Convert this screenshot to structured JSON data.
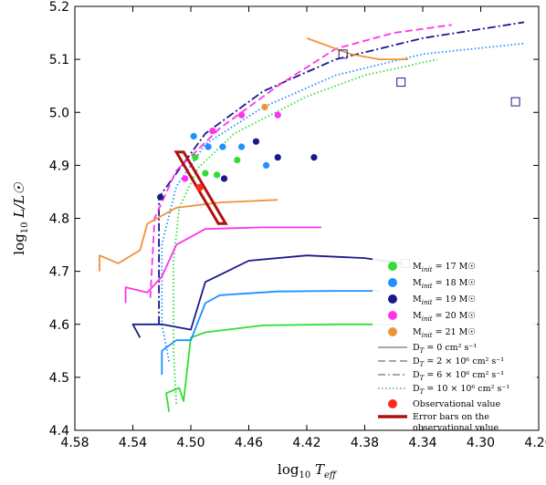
{
  "chart_data": {
    "type": "line",
    "xlabel": "log10 Teff",
    "ylabel": "log10 L/L☉",
    "xlim": [
      4.58,
      4.26
    ],
    "ylim": [
      4.4,
      5.2
    ],
    "x_ticks": [
      "4.58",
      "4.54",
      "4.50",
      "4.46",
      "4.42",
      "4.38",
      "4.34",
      "4.30",
      "4.26"
    ],
    "y_ticks": [
      "4.4",
      "4.5",
      "4.6",
      "4.7",
      "4.8",
      "4.9",
      "5.0",
      "5.1",
      "5.2"
    ],
    "grid": false,
    "legend_position": "bottom-right",
    "series": [
      {
        "name": "Minit = 17 M☉",
        "color": "#33dd33",
        "tracks": [
          {
            "dt": "0",
            "points": [
              [
                4.515,
                4.435
              ],
              [
                4.517,
                4.47
              ],
              [
                4.508,
                4.48
              ],
              [
                4.505,
                4.455
              ],
              [
                4.5,
                4.575
              ],
              [
                4.49,
                4.585
              ],
              [
                4.45,
                4.598
              ],
              [
                4.4,
                4.6
              ],
              [
                4.36,
                4.6
              ]
            ]
          },
          {
            "dt": "10",
            "points": [
              [
                4.51,
                4.45
              ],
              [
                4.512,
                4.55
              ],
              [
                4.512,
                4.72
              ],
              [
                4.508,
                4.82
              ],
              [
                4.495,
                4.895
              ],
              [
                4.47,
                4.96
              ],
              [
                4.42,
                5.03
              ],
              [
                4.38,
                5.07
              ],
              [
                4.33,
                5.1
              ]
            ]
          }
        ],
        "markers": [
          [
            4.497,
            4.915
          ],
          [
            4.49,
            4.885
          ],
          [
            4.482,
            4.882
          ],
          [
            4.468,
            4.91
          ]
        ]
      },
      {
        "name": "Minit = 18 M☉",
        "color": "#1e90ff",
        "tracks": [
          {
            "dt": "0",
            "points": [
              [
                4.52,
                4.505
              ],
              [
                4.52,
                4.55
              ],
              [
                4.51,
                4.57
              ],
              [
                4.5,
                4.57
              ],
              [
                4.49,
                4.64
              ],
              [
                4.48,
                4.655
              ],
              [
                4.44,
                4.662
              ],
              [
                4.4,
                4.663
              ],
              [
                4.37,
                4.663
              ]
            ]
          },
          {
            "dt": "10",
            "points": [
              [
                4.515,
                4.53
              ],
              [
                4.52,
                4.6
              ],
              [
                4.52,
                4.75
              ],
              [
                4.51,
                4.86
              ],
              [
                4.49,
                4.94
              ],
              [
                4.45,
                5.01
              ],
              [
                4.4,
                5.07
              ],
              [
                4.34,
                5.11
              ],
              [
                4.27,
                5.13
              ]
            ]
          }
        ],
        "markers": [
          [
            4.498,
            4.955
          ],
          [
            4.488,
            4.935
          ],
          [
            4.478,
            4.935
          ],
          [
            4.465,
            4.935
          ],
          [
            4.448,
            4.9
          ]
        ]
      },
      {
        "name": "Minit = 19 M☉",
        "color": "#1a1a8c",
        "tracks": [
          {
            "dt": "0",
            "points": [
              [
                4.535,
                4.575
              ],
              [
                4.54,
                4.6
              ],
              [
                4.52,
                4.6
              ],
              [
                4.5,
                4.59
              ],
              [
                4.49,
                4.68
              ],
              [
                4.46,
                4.72
              ],
              [
                4.42,
                4.73
              ],
              [
                4.38,
                4.725
              ],
              [
                4.355,
                4.715
              ]
            ]
          },
          {
            "dt": "6",
            "points": [
              [
                4.522,
                4.6
              ],
              [
                4.522,
                4.84
              ],
              [
                4.49,
                4.96
              ],
              [
                4.45,
                5.04
              ],
              [
                4.4,
                5.1
              ],
              [
                4.34,
                5.14
              ],
              [
                4.27,
                5.17
              ]
            ]
          }
        ],
        "markers": [
          [
            4.521,
            4.84
          ],
          [
            4.477,
            4.875
          ],
          [
            4.455,
            4.945
          ],
          [
            4.44,
            4.915
          ],
          [
            4.415,
            4.915
          ]
        ]
      },
      {
        "name": "Minit = 20 M☉",
        "color": "#ff33ee",
        "tracks": [
          {
            "dt": "0",
            "points": [
              [
                4.545,
                4.64
              ],
              [
                4.545,
                4.67
              ],
              [
                4.53,
                4.66
              ],
              [
                4.52,
                4.69
              ],
              [
                4.51,
                4.75
              ],
              [
                4.49,
                4.78
              ],
              [
                4.45,
                4.783
              ],
              [
                4.41,
                4.783
              ]
            ]
          },
          {
            "dt": "2",
            "points": [
              [
                4.528,
                4.65
              ],
              [
                4.525,
                4.8
              ],
              [
                4.51,
                4.89
              ],
              [
                4.48,
                4.97
              ],
              [
                4.44,
                5.05
              ],
              [
                4.4,
                5.12
              ],
              [
                4.36,
                5.15
              ],
              [
                4.32,
                5.165
              ]
            ]
          }
        ],
        "markers": [
          [
            4.504,
            4.875
          ],
          [
            4.485,
            4.965
          ],
          [
            4.465,
            4.995
          ],
          [
            4.44,
            4.995
          ]
        ]
      },
      {
        "name": "Minit = 21 M☉",
        "color": "#f0923a",
        "tracks": [
          {
            "dt": "0",
            "points": [
              [
                4.563,
                4.7
              ],
              [
                4.563,
                4.73
              ],
              [
                4.55,
                4.715
              ],
              [
                4.535,
                4.74
              ],
              [
                4.53,
                4.79
              ],
              [
                4.51,
                4.82
              ],
              [
                4.48,
                4.83
              ],
              [
                4.44,
                4.835
              ]
            ]
          },
          {
            "dt": "0-upper",
            "points": [
              [
                4.42,
                5.14
              ],
              [
                4.39,
                5.11
              ],
              [
                4.37,
                5.1
              ],
              [
                4.35,
                5.1
              ]
            ]
          }
        ],
        "markers": [
          [
            4.449,
            5.01
          ]
        ]
      }
    ],
    "end_markers": [
      [
        4.276,
        5.02
      ],
      [
        4.352,
        4.715
      ],
      [
        4.355,
        5.057
      ],
      [
        4.395,
        5.11
      ]
    ],
    "observational_value": {
      "x": 4.494,
      "y": 4.858
    },
    "error_box": [
      [
        4.51,
        4.925
      ],
      [
        4.505,
        4.925
      ],
      [
        4.476,
        4.79
      ],
      [
        4.481,
        4.79
      ]
    ]
  },
  "legend": {
    "entries": [
      {
        "label": "M",
        "sub": "init",
        "rest": " = 17 M☉",
        "color": "#33dd33",
        "kind": "dot"
      },
      {
        "label": "M",
        "sub": "init",
        "rest": " = 18 M☉",
        "color": "#1e90ff",
        "kind": "dot"
      },
      {
        "label": "M",
        "sub": "init",
        "rest": " = 19 M☉",
        "color": "#1a1a8c",
        "kind": "dot"
      },
      {
        "label": "M",
        "sub": "init",
        "rest": " = 20 M☉",
        "color": "#ff33ee",
        "kind": "dot"
      },
      {
        "label": "M",
        "sub": "init",
        "rest": " = 21 M☉",
        "color": "#f0923a",
        "kind": "dot"
      },
      {
        "label": "D",
        "sub": "T",
        "rest": " = 0 cm² s⁻¹",
        "color": "#888888",
        "kind": "solid"
      },
      {
        "label": "D",
        "sub": "T",
        "rest": " = 2 × 10⁶ cm² s⁻¹",
        "color": "#888888",
        "kind": "dashed"
      },
      {
        "label": "D",
        "sub": "T",
        "rest": " = 6 × 10⁶ cm² s⁻¹",
        "color": "#888888",
        "kind": "dashdot"
      },
      {
        "label": "D",
        "sub": "T",
        "rest": " = 10 × 10⁶ cm² s⁻¹",
        "color": "#888888",
        "kind": "dotted"
      },
      {
        "label": "Observational value",
        "sub": "",
        "rest": "",
        "color": "#ff2a1a",
        "kind": "obs"
      },
      {
        "label": "Error bars on the",
        "sub": "",
        "rest": "",
        "color": "#b01010",
        "kind": "err",
        "line2": "observational value"
      }
    ]
  }
}
